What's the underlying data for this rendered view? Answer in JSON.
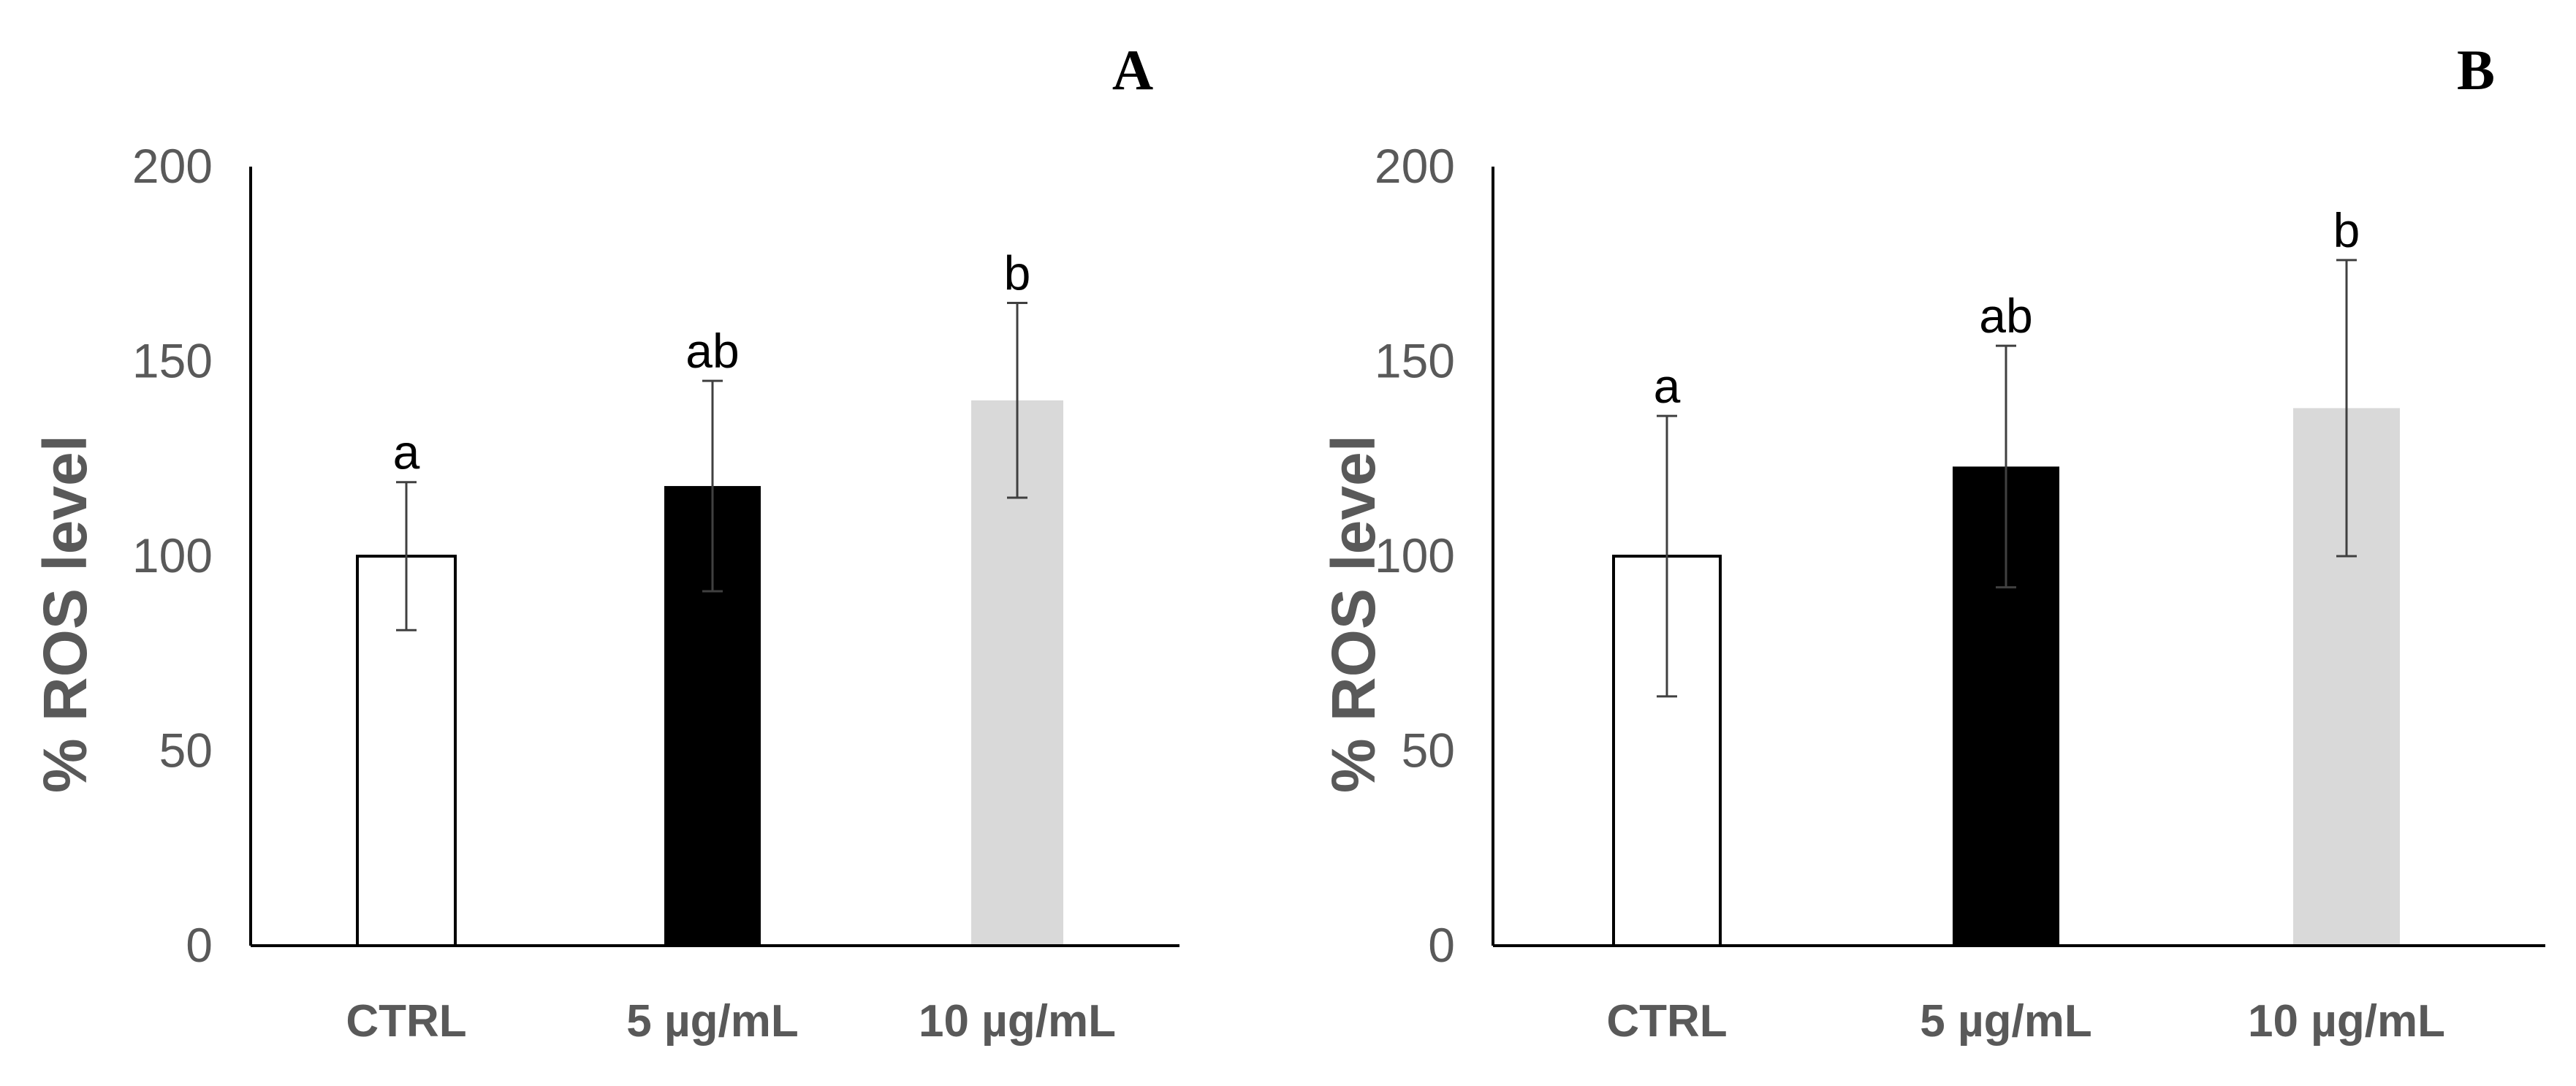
{
  "colors": {
    "axis": "#000000",
    "tick_text": "#595959",
    "bar_ctrl_fill": "#ffffff",
    "bar_ctrl_stroke": "#000000",
    "bar_5_fill": "#000000",
    "bar_10_fill": "#d9d9d9",
    "error_bar": "#404040"
  },
  "chart_data": [
    {
      "type": "bar",
      "panel_label": "A",
      "categories": [
        "CTRL",
        "5 µg/mL",
        "10 µg/mL"
      ],
      "values": [
        100,
        118,
        140
      ],
      "error": [
        19,
        27,
        25
      ],
      "significance": [
        "a",
        "ab",
        "b"
      ],
      "ylabel": "% ROS level",
      "xlabel": "",
      "ylim": [
        0,
        200
      ],
      "yticks": [
        0,
        50,
        100,
        150,
        200
      ],
      "grid": false,
      "legend": "none"
    },
    {
      "type": "bar",
      "panel_label": "B",
      "categories": [
        "CTRL",
        "5 µg/mL",
        "10 µg/mL"
      ],
      "values": [
        100,
        123,
        138
      ],
      "error": [
        36,
        31,
        38
      ],
      "significance": [
        "a",
        "ab",
        "b"
      ],
      "ylabel": "% ROS level",
      "xlabel": "",
      "ylim": [
        0,
        200
      ],
      "yticks": [
        0,
        50,
        100,
        150,
        200
      ],
      "grid": false,
      "legend": "none"
    }
  ]
}
